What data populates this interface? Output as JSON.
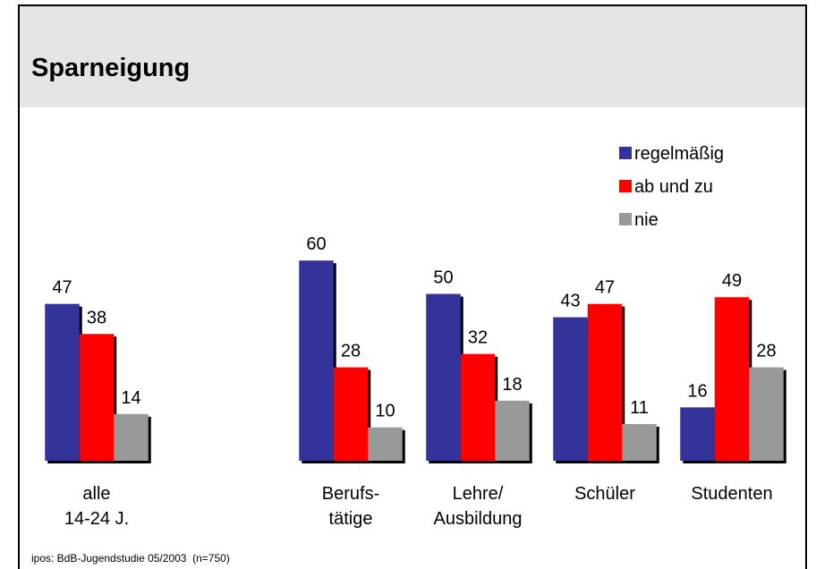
{
  "chart_data": {
    "type": "bar",
    "title": "Sparneigung",
    "categories": [
      "alle\n14-24 J.",
      null,
      "Berufs-\ntätige",
      "Lehre/\nAusbildung",
      "Schüler",
      "Studenten"
    ],
    "series": [
      {
        "name": "regelmäßig",
        "color": "#333399",
        "values": [
          47,
          null,
          60,
          50,
          43,
          16
        ]
      },
      {
        "name": "ab und zu",
        "color": "#ff0000",
        "values": [
          38,
          null,
          28,
          32,
          47,
          49
        ]
      },
      {
        "name": "nie",
        "color": "#999999",
        "values": [
          14,
          null,
          10,
          18,
          11,
          28
        ]
      }
    ],
    "source": "ipos: BdB-Jugendstudie 05/2003  (n=750)"
  }
}
